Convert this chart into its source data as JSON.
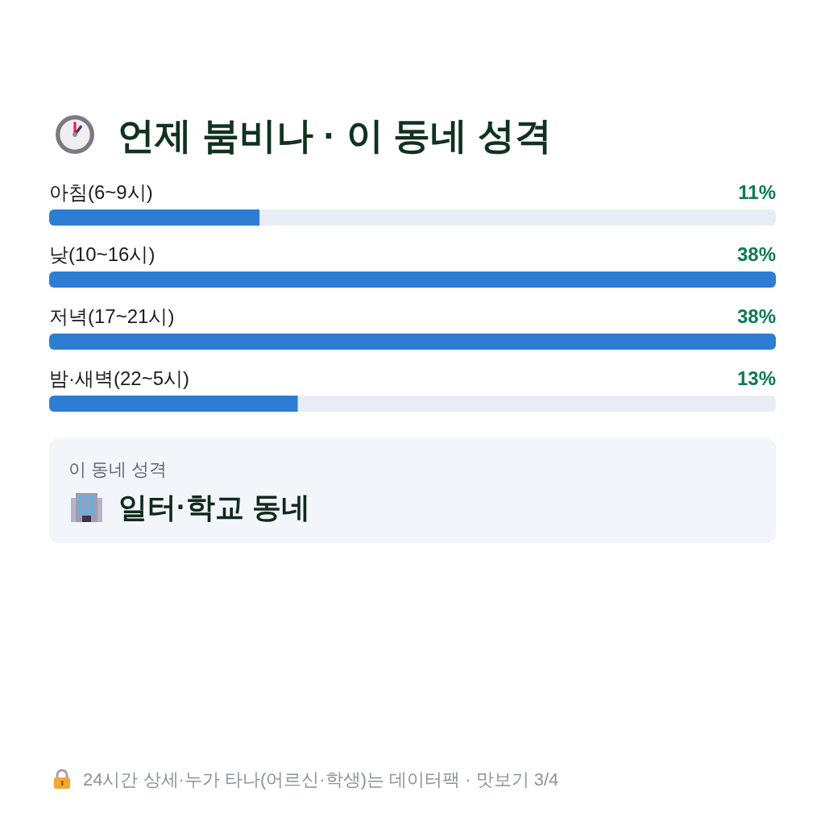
{
  "chart_data": {
    "type": "bar",
    "orientation": "horizontal",
    "title": "언제 붐비나 · 이 동네 성격",
    "categories": [
      "아침(6~9시)",
      "낮(10~16시)",
      "저녁(17~21시)",
      "밤·새벽(22~5시)"
    ],
    "values": [
      11,
      38,
      38,
      13
    ],
    "color": "#2d7dd2",
    "value_labels": [
      "11%",
      "38%",
      "38%",
      "13%"
    ],
    "annotations": [
      "이 동네 성격",
      "일터·학교 동네",
      "24시간 상세·누가 타나(어르신·학생)는 데이터팩 · 맛보기 3/4"
    ]
  }
}
